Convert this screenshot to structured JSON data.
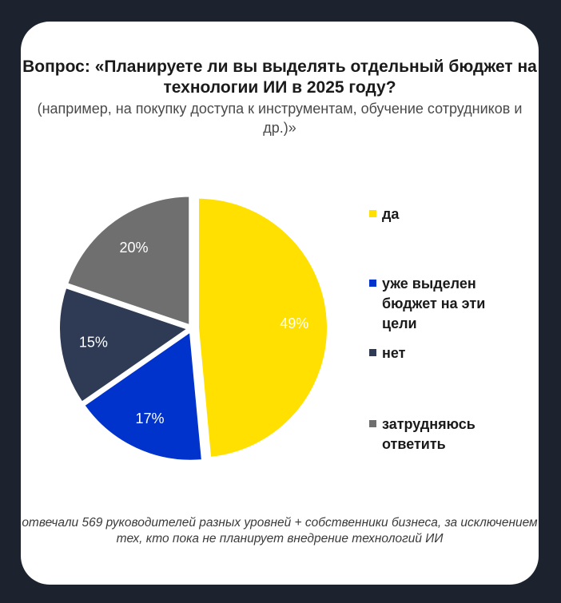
{
  "title": "Вопрос: «Планируете ли вы выделять отдельный бюджет на технологии ИИ в 2025 году?",
  "subtitle": "(например, на покупку доступа к инструментам, обучение сотрудников и др.)»",
  "footnote": "отвечали 569 руководителей разных уровней + собственники бизнеса, за исключением тех, кто пока не планирует внедрение технологий ИИ",
  "chart_data": {
    "type": "pie",
    "title": "Вопрос: «Планируете ли вы выделять отдельный бюджет на технологии ИИ в 2025 году?",
    "categories": [
      "да",
      "уже выделен бюджет на эти цели",
      "нет",
      "затрудняюсь ответить"
    ],
    "values": [
      49,
      17,
      15,
      20
    ],
    "labels": [
      "49%",
      "17%",
      "15%",
      "20%"
    ],
    "colors": [
      "#ffe000",
      "#0033cc",
      "#2f3b55",
      "#6f6f6f"
    ],
    "label_colors": [
      "#ffffff",
      "#ffffff",
      "#ffffff",
      "#ffffff"
    ],
    "legend_position": "right"
  }
}
